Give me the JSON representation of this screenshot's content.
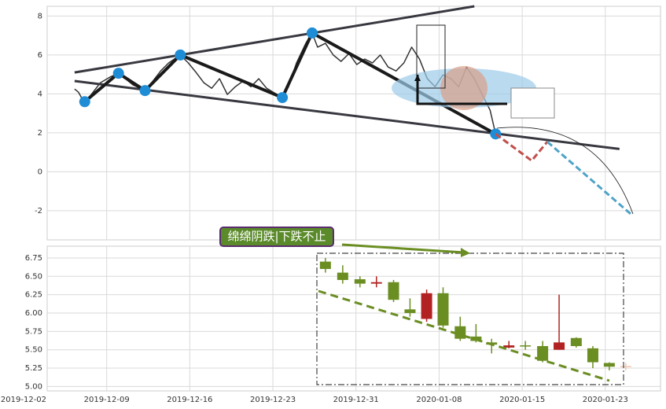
{
  "chart_data": [
    {
      "type": "line",
      "xlim": [
        1.42,
        38.32
      ],
      "ylim": [
        -3.5,
        8.5
      ],
      "yticks": [
        -2,
        0,
        2,
        4,
        6,
        8
      ],
      "grid": true,
      "series": [
        {
          "color": "#333333",
          "width": 1.5,
          "x": [
            3.07,
            3.3,
            3.54,
            3.77,
            4.15,
            4.62,
            5.19,
            5.71,
            6.13,
            6.6,
            7.31,
            7.78,
            8.25,
            8.73,
            9.43,
            9.91,
            10.38,
            10.85,
            11.32,
            11.79,
            12.26,
            12.74,
            13.21,
            13.68,
            14.15,
            14.62,
            15.09,
            15.57,
            15.94,
            16.42,
            16.98,
            17.36,
            17.69,
            18.16,
            18.63,
            19.1,
            19.58,
            20.05,
            20.52,
            20.99,
            21.46,
            21.93,
            22.41,
            22.88,
            23.35,
            23.82,
            24.29,
            24.76,
            25.24,
            25.71,
            26.18,
            26.65,
            27.12,
            27.59,
            28.07,
            28.4
          ],
          "values": [
            4.25,
            4.09,
            3.72,
            3.64,
            4.05,
            4.57,
            4.86,
            5.06,
            4.78,
            4.45,
            4.17,
            4.66,
            5.18,
            5.59,
            6.0,
            5.59,
            5.1,
            4.57,
            4.29,
            4.78,
            3.97,
            4.37,
            4.66,
            4.37,
            4.78,
            4.29,
            4.05,
            3.81,
            4.37,
            5.59,
            6.6,
            7.13,
            6.4,
            6.6,
            6.0,
            5.67,
            6.07,
            5.51,
            5.79,
            5.59,
            6.0,
            5.38,
            5.18,
            5.59,
            6.4,
            5.79,
            4.78,
            4.37,
            4.98,
            4.78,
            4.37,
            5.38,
            4.78,
            3.97,
            3.16,
            1.94
          ]
        },
        {
          "color": "#383840",
          "width": 3,
          "x": [
            3.07,
            27.12
          ],
          "values": [
            5.1,
            8.5
          ]
        },
        {
          "color": "#383840",
          "width": 3,
          "x": [
            3.07,
            35.85
          ],
          "values": [
            4.66,
            1.17
          ]
        },
        {
          "color": "#1a1a1a",
          "width": 4,
          "markers": true,
          "marker_color": "#1f8dd6",
          "x": [
            3.68,
            5.71,
            7.31,
            9.43,
            15.57,
            17.36,
            28.4
          ],
          "values": [
            3.6,
            5.06,
            4.17,
            6.0,
            3.81,
            7.13,
            1.94
          ]
        },
        {
          "color": "#c0504d",
          "width": 3,
          "dashed": true,
          "x": [
            28.4,
            30.57,
            31.51
          ],
          "values": [
            1.94,
            0.57,
            1.54
          ]
        },
        {
          "color": "#4fa3c7",
          "width": 3,
          "dashed": true,
          "x": [
            31.51,
            36.56
          ],
          "values": [
            1.54,
            -2.19
          ]
        }
      ]
    },
    {
      "type": "candlestick",
      "annotation": "绵绵阴跌|下跌不止",
      "xlim": [
        1.42,
        38.32
      ],
      "ylim": [
        4.94,
        6.91
      ],
      "xticks": [
        {
          "value": 0,
          "label": "2019-12-02"
        },
        {
          "value": 5,
          "label": "2019-12-09"
        },
        {
          "value": 10,
          "label": "2019-12-16"
        },
        {
          "value": 15,
          "label": "2019-12-23"
        },
        {
          "value": 20,
          "label": "2019-12-31"
        },
        {
          "value": 25,
          "label": "2020-01-08"
        },
        {
          "value": 30,
          "label": "2020-01-15"
        },
        {
          "value": 35,
          "label": "2020-01-23"
        }
      ],
      "yticks": [
        {
          "value": 5,
          "label": "5.00"
        },
        5.25,
        {
          "value": 5.5,
          "label": "5.50"
        },
        5.75,
        {
          "value": 6,
          "label": "6.00"
        },
        6.25,
        {
          "value": 6.5,
          "label": "6.50"
        },
        6.75
      ],
      "grid": true,
      "x": [
        18.16,
        19.2,
        20.24,
        21.23,
        22.26,
        23.25,
        24.25,
        25.24,
        26.27,
        27.22,
        28.16,
        29.2,
        30.19,
        31.23,
        32.22,
        33.25,
        34.25,
        35.24,
        36.23
      ],
      "open": [
        6.7,
        6.55,
        6.46,
        6.4,
        6.42,
        6.05,
        5.92,
        6.27,
        5.82,
        5.68,
        5.6,
        5.53,
        5.56,
        5.55,
        5.5,
        5.66,
        5.52,
        5.32,
        5.27
      ],
      "high": [
        6.75,
        6.65,
        6.5,
        6.5,
        6.45,
        6.2,
        6.32,
        6.35,
        5.95,
        5.85,
        5.65,
        5.62,
        5.62,
        5.62,
        6.25,
        5.67,
        5.55,
        5.33,
        5.32
      ],
      "low": [
        6.55,
        6.4,
        6.35,
        6.35,
        6.15,
        5.95,
        5.88,
        5.8,
        5.62,
        5.6,
        5.45,
        5.52,
        5.5,
        5.33,
        5.5,
        5.53,
        5.25,
        5.22,
        5.22
      ],
      "close": [
        6.6,
        6.45,
        6.4,
        6.42,
        6.18,
        6.0,
        6.27,
        5.83,
        5.65,
        5.62,
        5.57,
        5.56,
        5.55,
        5.35,
        5.6,
        5.55,
        5.33,
        5.27,
        5.28
      ],
      "colors": [
        "#6b8e23",
        "#6b8e23",
        "#6b8e23",
        "#b22222",
        "#6b8e23",
        "#6b8e23",
        "#b22222",
        "#6b8e23",
        "#6b8e23",
        "#6b8e23",
        "#6b8e23",
        "#b22222",
        "#6b8e23",
        "#6b8e23",
        "#b22222",
        "#6b8e23",
        "#6b8e23",
        "#6b8e23",
        "#f4c7b0"
      ]
    }
  ]
}
